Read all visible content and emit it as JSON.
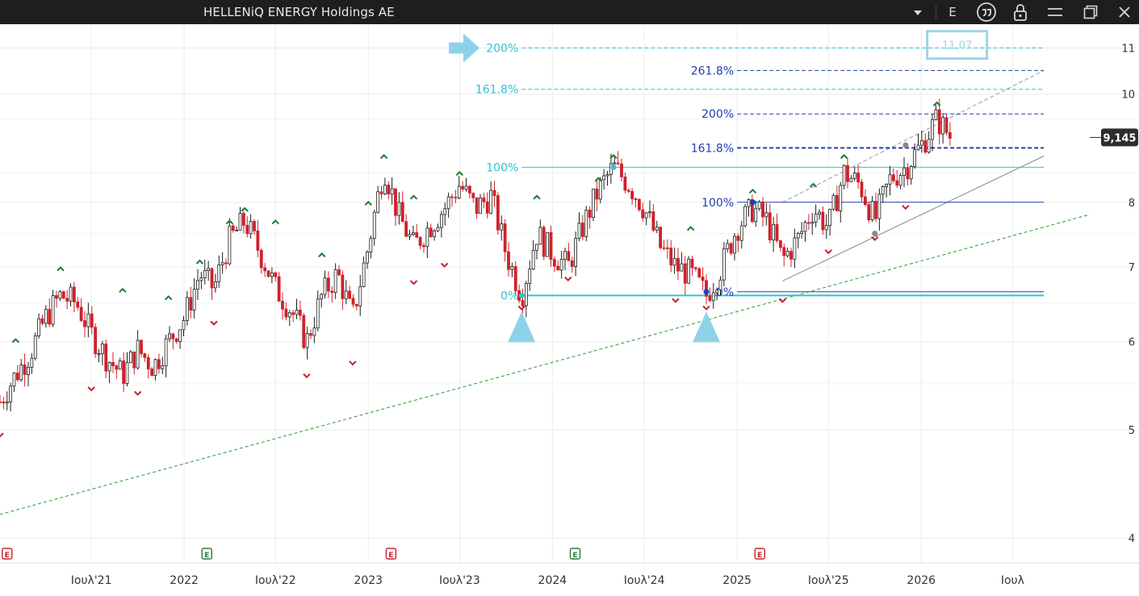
{
  "window": {
    "title": "HELLENiQ ENERGY Holdings AE",
    "controls": {
      "dropdown_icon": "caret-down-icon",
      "mode_label": "E",
      "quote_icon": "quote-icon",
      "lock_icon": "lock-icon",
      "minimize_icon": "minimize-icon",
      "restore_icon": "restore-icon",
      "close_icon": "close-icon"
    }
  },
  "colors": {
    "up": "#1d1d1d",
    "down": "#d0202a",
    "cyan": "#2ec4d0",
    "blue": "#1f3fb0",
    "green_trend": "#2a9a2a",
    "marker_up": "#1e7a30",
    "marker_down": "#c4202a",
    "last_price_bg": "#2d2d2d"
  },
  "chart_data": {
    "type": "candlestick",
    "x_ticks": [
      "Ιουλ'21",
      "2022",
      "Ιουλ'22",
      "2023",
      "Ιουλ'23",
      "2024",
      "Ιουλ'24",
      "2025",
      "Ιουλ'25",
      "2026",
      "Ιουλ"
    ],
    "x_tick_dates": [
      "2021-07-01",
      "2022-01-01",
      "2022-07-01",
      "2023-01-01",
      "2023-07-01",
      "2024-01-01",
      "2024-07-01",
      "2025-01-01",
      "2025-07-01",
      "2026-01-01",
      "2026-07-01"
    ],
    "x_range": [
      "2021-01-01",
      "2026-12-01"
    ],
    "y_ticks": [
      4,
      5,
      6,
      7,
      8,
      10,
      11
    ],
    "y_range": [
      3.8,
      11.4
    ],
    "y_scale": "log",
    "last_price": "9,145",
    "last_price_value": 9.145,
    "target_box": "11,07",
    "grid": true,
    "price_path": [
      [
        "2021-01-01",
        5.3
      ],
      [
        "2021-02-01",
        5.6
      ],
      [
        "2021-03-01",
        5.85
      ],
      [
        "2021-04-01",
        6.3
      ],
      [
        "2021-05-01",
        6.6
      ],
      [
        "2021-06-01",
        6.5
      ],
      [
        "2021-07-01",
        6.1
      ],
      [
        "2021-08-01",
        5.8
      ],
      [
        "2021-09-01",
        5.6
      ],
      [
        "2021-10-01",
        5.9
      ],
      [
        "2021-11-01",
        5.7
      ],
      [
        "2021-12-01",
        6.0
      ],
      [
        "2022-01-01",
        6.3
      ],
      [
        "2022-02-01",
        6.9
      ],
      [
        "2022-03-01",
        6.7
      ],
      [
        "2022-04-01",
        7.4
      ],
      [
        "2022-05-01",
        7.7
      ],
      [
        "2022-06-01",
        7.2
      ],
      [
        "2022-07-01",
        6.7
      ],
      [
        "2022-08-01",
        6.4
      ],
      [
        "2022-09-01",
        6.0
      ],
      [
        "2022-10-01",
        6.6
      ],
      [
        "2022-11-01",
        6.9
      ],
      [
        "2022-12-01",
        6.3
      ],
      [
        "2023-01-01",
        7.3
      ],
      [
        "2023-02-01",
        8.6
      ],
      [
        "2023-03-01",
        7.8
      ],
      [
        "2023-04-01",
        7.3
      ],
      [
        "2023-05-01",
        7.6
      ],
      [
        "2023-06-01",
        7.9
      ],
      [
        "2023-07-01",
        8.3
      ],
      [
        "2023-08-01",
        7.9
      ],
      [
        "2023-09-01",
        8.1
      ],
      [
        "2023-10-01",
        7.2
      ],
      [
        "2023-11-01",
        6.6
      ],
      [
        "2023-12-01",
        7.5
      ],
      [
        "2024-01-01",
        7.2
      ],
      [
        "2024-02-01",
        7.0
      ],
      [
        "2024-03-01",
        7.6
      ],
      [
        "2024-04-01",
        8.2
      ],
      [
        "2024-05-01",
        8.6
      ],
      [
        "2024-06-01",
        8.3
      ],
      [
        "2024-07-01",
        7.9
      ],
      [
        "2024-08-01",
        7.3
      ],
      [
        "2024-09-01",
        7.0
      ],
      [
        "2024-10-01",
        6.9
      ],
      [
        "2024-11-01",
        6.6
      ],
      [
        "2024-12-01",
        7.0
      ],
      [
        "2025-01-01",
        7.6
      ],
      [
        "2025-02-01",
        7.9
      ],
      [
        "2025-03-01",
        7.7
      ],
      [
        "2025-04-01",
        7.1
      ],
      [
        "2025-05-01",
        7.4
      ],
      [
        "2025-06-01",
        7.9
      ],
      [
        "2025-07-01",
        7.6
      ],
      [
        "2025-08-01",
        8.5
      ],
      [
        "2025-09-01",
        8.3
      ],
      [
        "2025-10-01",
        7.7
      ],
      [
        "2025-11-01",
        8.4
      ],
      [
        "2025-12-01",
        8.6
      ],
      [
        "2026-01-01",
        9.0
      ],
      [
        "2026-02-01",
        9.5
      ],
      [
        "2026-03-01",
        9.145
      ]
    ],
    "fib_cyan": {
      "levels": [
        {
          "label": "200%",
          "value": 11.0
        },
        {
          "label": "161.8%",
          "value": 10.1
        },
        {
          "label": "100%",
          "value": 8.6
        },
        {
          "label": "0%",
          "value": 6.6
        }
      ],
      "start_date": "2023-11-01",
      "end_date": "2026-09-01"
    },
    "fib_blue": {
      "levels": [
        {
          "label": "261.8%",
          "value": 10.5
        },
        {
          "label": "200%",
          "value": 9.6
        },
        {
          "label": "161.8%",
          "value": 8.95
        },
        {
          "label": "100%",
          "value": 8.0
        },
        {
          "label": "0%",
          "value": 6.65
        }
      ],
      "start_date": "2025-01-01",
      "end_date": "2026-09-01"
    },
    "trend_green": {
      "from": [
        "2021-01-01",
        4.2
      ],
      "to": [
        "2026-12-01",
        7.8
      ]
    },
    "channel_lower": {
      "from": [
        "2025-04-01",
        6.8
      ],
      "to": [
        "2026-09-01",
        8.8
      ]
    },
    "channel_upper": {
      "from": [
        "2025-04-01",
        8.0
      ],
      "to": [
        "2026-09-01",
        10.5
      ]
    },
    "peak_markers": [
      [
        "2021-02-01",
        5.95
      ],
      [
        "2021-05-01",
        6.9
      ],
      [
        "2021-09-01",
        6.6
      ],
      [
        "2021-12-01",
        6.5
      ],
      [
        "2022-02-01",
        7.0
      ],
      [
        "2022-04-01",
        7.6
      ],
      [
        "2022-05-01",
        7.8
      ],
      [
        "2022-07-01",
        7.6
      ],
      [
        "2022-10-01",
        7.1
      ],
      [
        "2023-01-01",
        7.9
      ],
      [
        "2023-02-01",
        8.7
      ],
      [
        "2023-04-01",
        8.0
      ],
      [
        "2023-07-01",
        8.4
      ],
      [
        "2023-12-01",
        8.0
      ],
      [
        "2024-04-01",
        8.3
      ],
      [
        "2024-05-01",
        8.7
      ],
      [
        "2024-10-01",
        7.5
      ],
      [
        "2025-02-01",
        8.1
      ],
      [
        "2025-06-01",
        8.2
      ],
      [
        "2025-08-01",
        8.7
      ],
      [
        "2026-02-01",
        9.7
      ]
    ],
    "trough_markers": [
      [
        "2021-01-01",
        5.0
      ],
      [
        "2021-07-01",
        5.5
      ],
      [
        "2021-10-01",
        5.45
      ],
      [
        "2022-03-01",
        6.3
      ],
      [
        "2022-09-01",
        5.65
      ],
      [
        "2022-12-01",
        5.8
      ],
      [
        "2023-04-01",
        6.85
      ],
      [
        "2023-06-01",
        7.1
      ],
      [
        "2023-11-01",
        6.5
      ],
      [
        "2024-02-01",
        6.9
      ],
      [
        "2024-09-01",
        6.6
      ],
      [
        "2024-11-01",
        6.5
      ],
      [
        "2025-04-01",
        6.6
      ],
      [
        "2025-07-01",
        7.3
      ],
      [
        "2025-10-01",
        7.5
      ],
      [
        "2025-12-01",
        8.0
      ]
    ],
    "event_dates": [
      "2021-01-15",
      "2022-02-15",
      "2023-02-15",
      "2024-02-15",
      "2025-02-15"
    ],
    "event_label": "E"
  }
}
